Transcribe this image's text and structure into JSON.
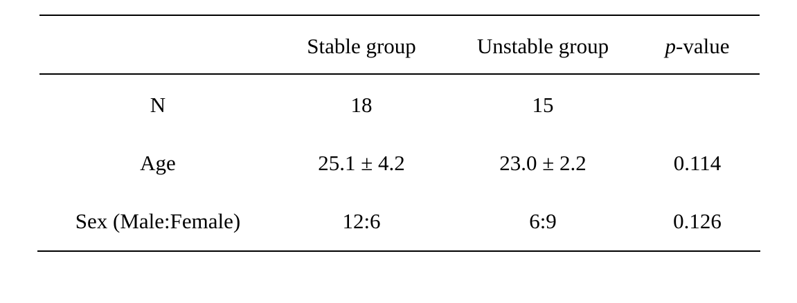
{
  "table": {
    "header": [
      "Stable group",
      "Unstable group",
      {
        "italic": "p",
        "text": "-value"
      }
    ],
    "rows": [
      {
        "label": "N",
        "stable": "18",
        "unstable": "15"
      },
      {
        "label": "Age",
        "stable": "25.1 ± 4.2",
        "unstable": "23.0 ± 2.2",
        "p_value": "0.114"
      },
      {
        "label": "Sex (Male:Female)",
        "stable": "12:6",
        "unstable": "6:9",
        "p_value": "0.126"
      }
    ]
  }
}
